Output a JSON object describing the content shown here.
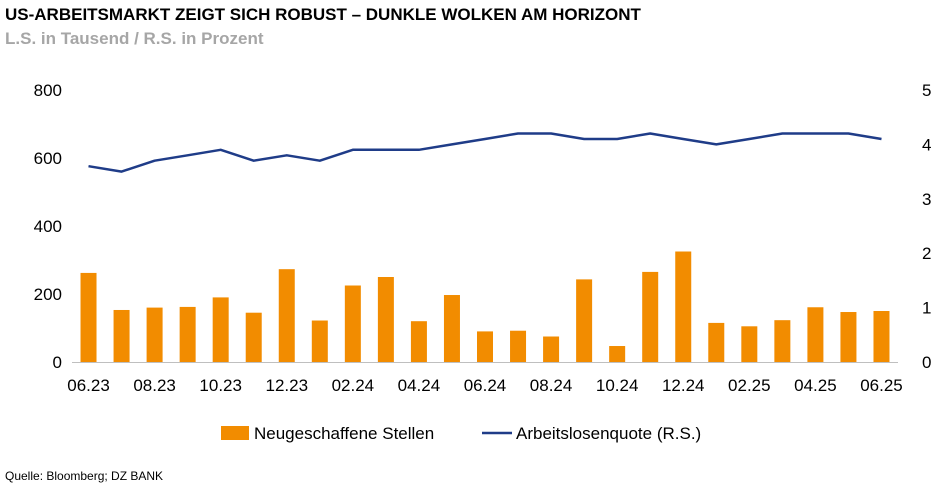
{
  "header": {
    "title": "US-ARBEITSMARKT ZEIGT SICH ROBUST – DUNKLE WOLKEN AM HORIZONT",
    "subtitle": "L.S. in Tausend / R.S. in Prozent"
  },
  "footer": {
    "source": "Quelle: Bloomberg; DZ BANK"
  },
  "colors": {
    "bars": "#f28c00",
    "line": "#1f3c88"
  },
  "chart_data": {
    "type": "bar",
    "title": "US-ARBEITSMARKT ZEIGT SICH ROBUST – DUNKLE WOLKEN AM HORIZONT",
    "subtitle": "L.S. in Tausend / R.S. in Prozent",
    "categories": [
      "06.23",
      "07.23",
      "08.23",
      "09.23",
      "10.23",
      "11.23",
      "12.23",
      "01.24",
      "02.24",
      "03.24",
      "04.24",
      "05.24",
      "06.24",
      "07.24",
      "08.24",
      "09.24",
      "10.24",
      "11.24",
      "12.24",
      "01.25",
      "02.25",
      "03.25",
      "04.25",
      "05.25",
      "06.25"
    ],
    "x_tick_labels": [
      "06.23",
      "08.23",
      "10.23",
      "12.23",
      "02.24",
      "04.24",
      "06.24",
      "08.24",
      "10.24",
      "12.24",
      "02.25",
      "04.25",
      "06.25"
    ],
    "ylim_left": [
      0,
      800
    ],
    "yticks_left": [
      "0",
      "200",
      "400",
      "600",
      "800"
    ],
    "ylim_right": [
      0,
      5
    ],
    "yticks_right": [
      "0",
      "1",
      "2",
      "3",
      "4",
      "5"
    ],
    "legend_position": "bottom",
    "grid": false,
    "series": [
      {
        "name": "Neugeschaffene Stellen",
        "type": "bar",
        "axis": "left",
        "values": [
          262,
          153,
          160,
          162,
          190,
          145,
          273,
          122,
          225,
          250,
          120,
          197,
          90,
          92,
          75,
          243,
          47,
          265,
          325,
          115,
          105,
          123,
          161,
          147,
          150
        ]
      },
      {
        "name": "Arbeitslosenquote (R.S.)",
        "type": "line",
        "axis": "right",
        "values": [
          3.6,
          3.5,
          3.7,
          3.8,
          3.9,
          3.7,
          3.8,
          3.7,
          3.9,
          3.9,
          3.9,
          4.0,
          4.1,
          4.2,
          4.2,
          4.1,
          4.1,
          4.2,
          4.1,
          4.0,
          4.1,
          4.2,
          4.2,
          4.2,
          4.1
        ]
      }
    ]
  }
}
